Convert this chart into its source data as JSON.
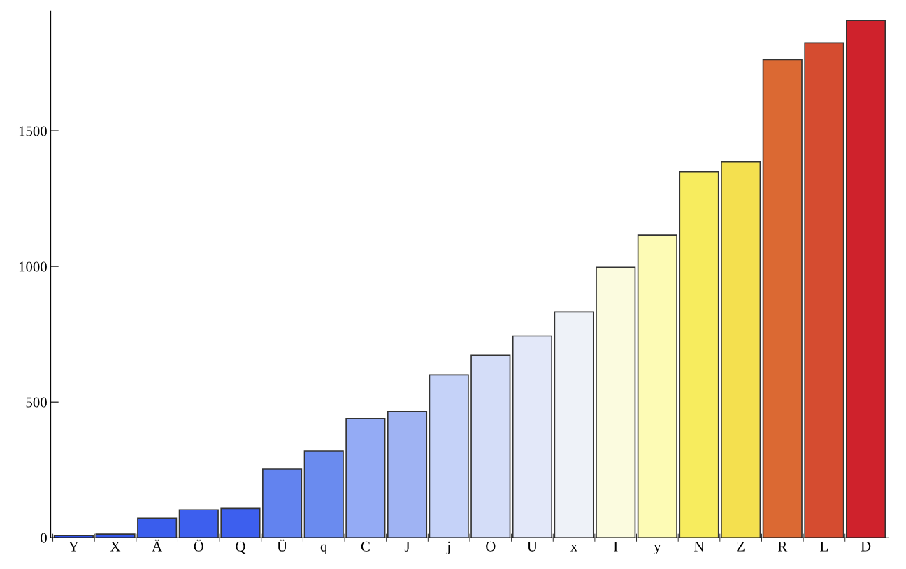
{
  "chart_data": {
    "type": "bar",
    "categories": [
      "Y",
      "X",
      "Ä",
      "Ö",
      "Q",
      "Ü",
      "q",
      "C",
      "J",
      "j",
      "O",
      "U",
      "x",
      "I",
      "y",
      "N",
      "Z",
      "R",
      "L",
      "D"
    ],
    "values": [
      8,
      13,
      72,
      103,
      108,
      253,
      320,
      439,
      465,
      600,
      672,
      744,
      832,
      997,
      1116,
      1349,
      1385,
      1762,
      1824,
      1907
    ],
    "colors": [
      "#2c4ee8",
      "#3355ea",
      "#3a5ded",
      "#3d5fee",
      "#3d5fee",
      "#6283ef",
      "#6a8bef",
      "#94abf5",
      "#9fb3f3",
      "#c5d2f8",
      "#d4ddf8",
      "#e3e8f9",
      "#eef2f8",
      "#fbfbdf",
      "#fdfbb5",
      "#f7ec5e",
      "#f4e04f",
      "#db6933",
      "#d54c30",
      "#cf222c"
    ],
    "ylim": [
      0,
      1940
    ],
    "yticks": [
      0,
      500,
      1000,
      1500
    ],
    "grid": false,
    "legend": false
  }
}
